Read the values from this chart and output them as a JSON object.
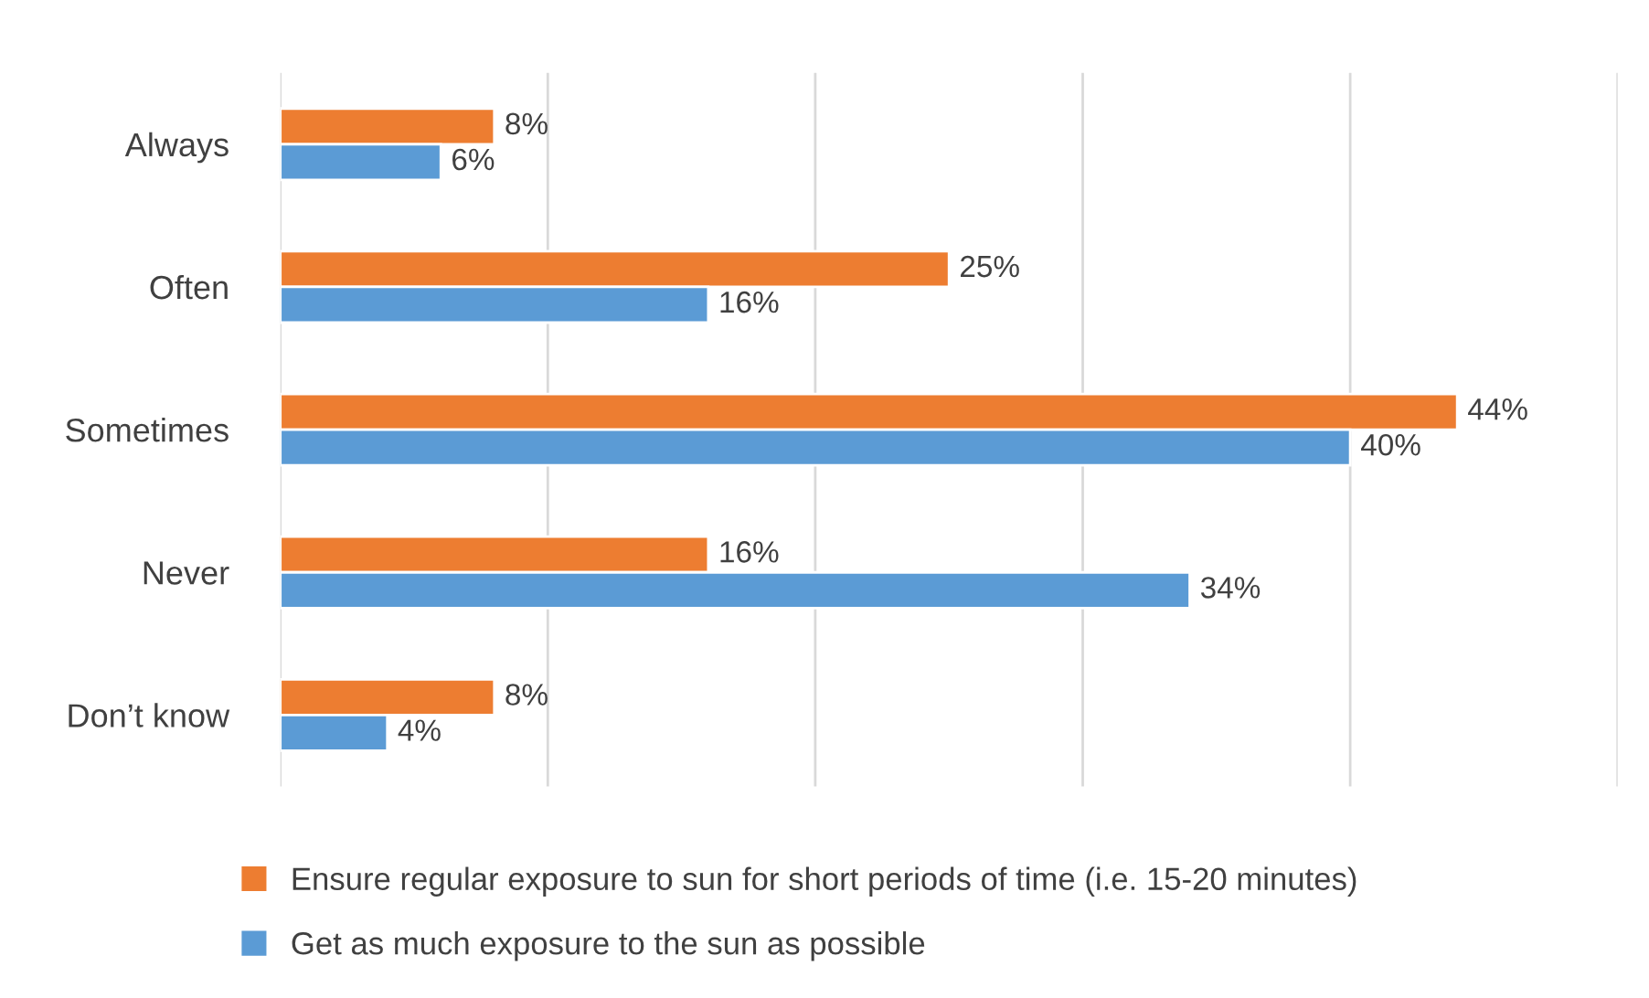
{
  "chart_data": {
    "type": "bar",
    "orientation": "horizontal",
    "categories": [
      "Always",
      "Often",
      "Sometimes",
      "Never",
      "Don’t know"
    ],
    "series": [
      {
        "name": "Ensure regular exposure to sun for short periods of time (i.e. 15-20 minutes)",
        "color": "#ed7d31",
        "values": [
          8,
          25,
          44,
          16,
          8
        ],
        "value_labels": [
          "8%",
          "25%",
          "44%",
          "16%",
          "8%"
        ]
      },
      {
        "name": "Get as much exposure to the sun as possible",
        "color": "#5b9bd5",
        "values": [
          6,
          16,
          40,
          34,
          4
        ],
        "value_labels": [
          "6%",
          "16%",
          "40%",
          "34%",
          "4%"
        ]
      }
    ],
    "xlim": [
      0,
      50
    ],
    "xticks": [
      {
        "value": 0,
        "label": null
      },
      {
        "value": 10,
        "label": null
      },
      {
        "value": 20,
        "label": null
      },
      {
        "value": 30,
        "label": null
      },
      {
        "value": 40,
        "label": null
      },
      {
        "value": 50,
        "label": null
      }
    ],
    "grid": "x",
    "legend": "bottom",
    "tick_labels": "y"
  }
}
